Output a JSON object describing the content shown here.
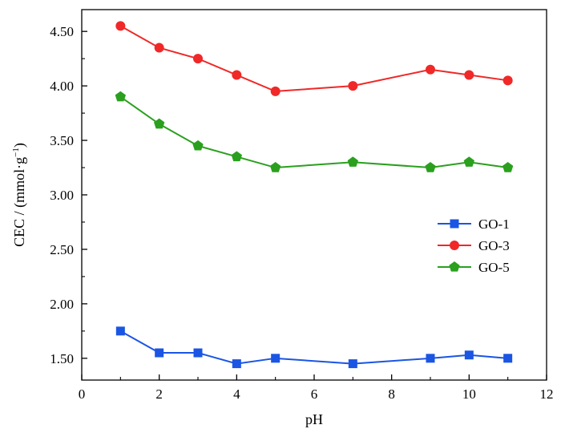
{
  "chart_data": {
    "type": "line",
    "xlabel": "pH",
    "ylabel": "CEC / (mmol·g",
    "ylabel_sup": "−1",
    "ylabel_close": ")",
    "xlim": [
      0,
      12
    ],
    "ylim": [
      1.3,
      4.7
    ],
    "x_ticks": [
      0,
      2,
      4,
      6,
      8,
      10,
      12
    ],
    "x_tick_labels": [
      "0",
      "2",
      "4",
      "6",
      "8",
      "10",
      "12"
    ],
    "y_ticks": [
      1.5,
      2.0,
      2.5,
      3.0,
      3.5,
      4.0,
      4.5
    ],
    "y_tick_labels": [
      "1.50",
      "2.00",
      "2.50",
      "3.00",
      "3.50",
      "4.00",
      "4.50"
    ],
    "grid": false,
    "legend_position": "right-middle",
    "x": [
      1,
      2,
      3,
      4,
      5,
      7,
      9,
      10,
      11
    ],
    "series": [
      {
        "name": "GO-1",
        "color": "#1a55e3",
        "marker": "square",
        "values": [
          1.75,
          1.55,
          1.55,
          1.45,
          1.5,
          1.45,
          1.5,
          1.53,
          1.5
        ]
      },
      {
        "name": "GO-3",
        "color": "#f02828",
        "marker": "circle",
        "values": [
          4.55,
          4.35,
          4.25,
          4.1,
          3.95,
          4.0,
          4.15,
          4.1,
          4.05
        ]
      },
      {
        "name": "GO-5",
        "color": "#2aa01e",
        "marker": "pentagon",
        "values": [
          3.9,
          3.65,
          3.45,
          3.35,
          3.25,
          3.3,
          3.25,
          3.3,
          3.25
        ]
      }
    ]
  }
}
